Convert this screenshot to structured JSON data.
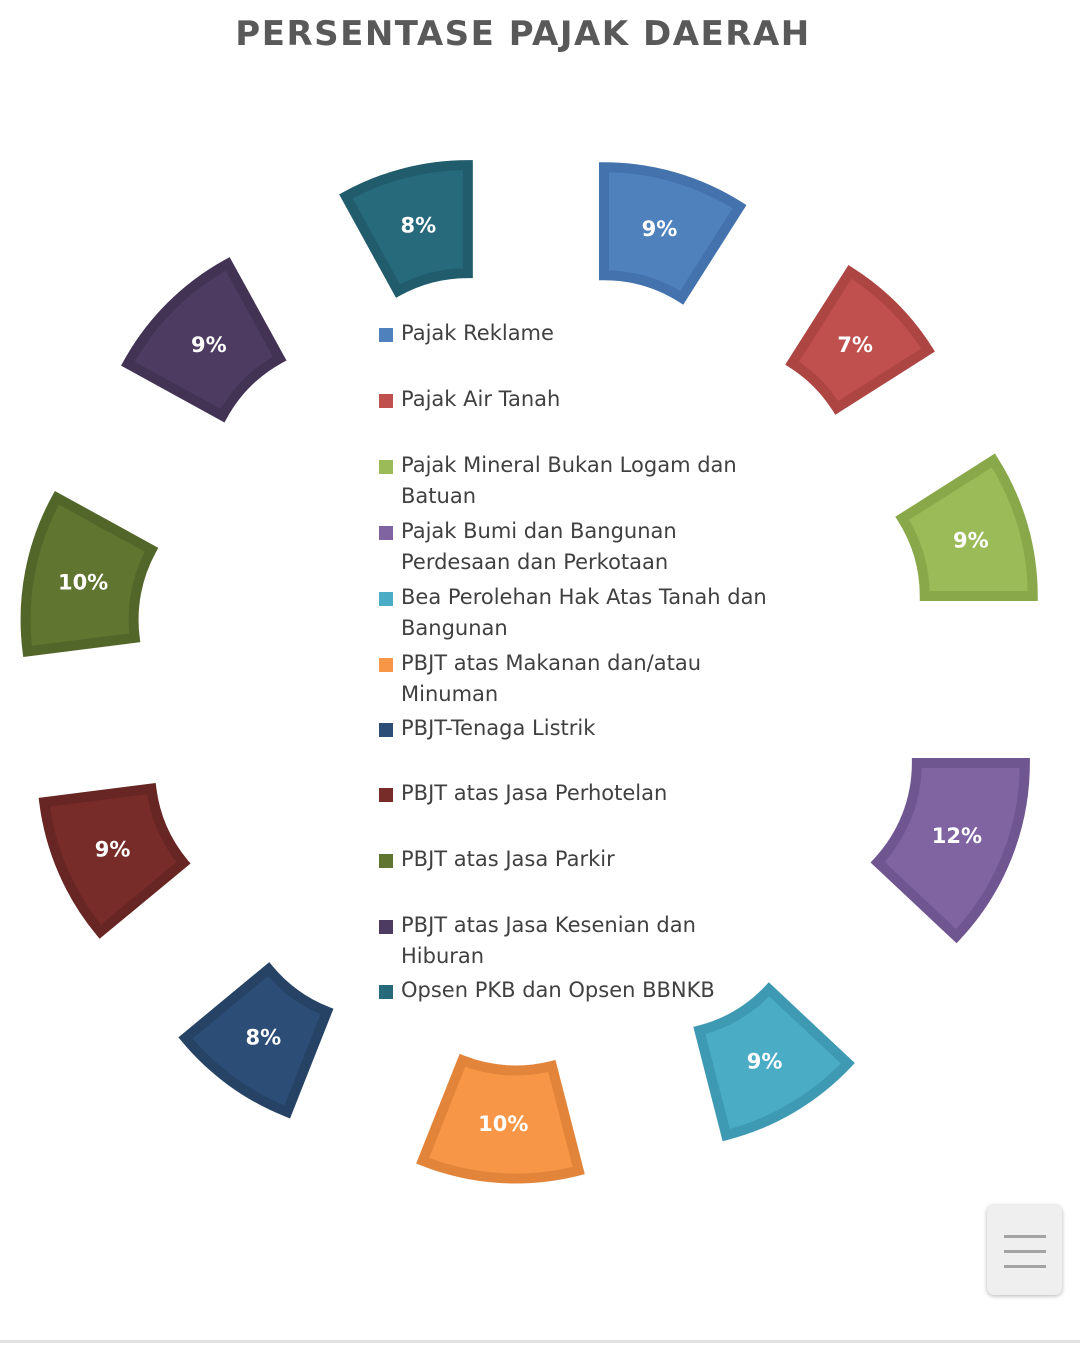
{
  "chart_data": {
    "type": "pie",
    "variant": "exploded-doughnut",
    "title": "PERSENTASE PAJAK DAERAH",
    "legend_position": "center",
    "slices": [
      {
        "name": "Pajak Reklame",
        "value": 9,
        "label": "9%",
        "fill": "#4F81BD",
        "stroke": "#4372AC"
      },
      {
        "name": "Pajak Air Tanah",
        "value": 7,
        "label": "7%",
        "fill": "#C0504D",
        "stroke": "#AD4542"
      },
      {
        "name": "Pajak Mineral Bukan Logam dan Batuan",
        "value": 9,
        "label": "9%",
        "fill": "#9BBB59",
        "stroke": "#89A84A"
      },
      {
        "name": "Pajak Bumi dan Bangunan Perdesaan dan Perkotaan",
        "value": 12,
        "label": "12%",
        "fill": "#8064A2",
        "stroke": "#705690"
      },
      {
        "name": "Bea Perolehan Hak Atas Tanah dan Bangunan",
        "value": 9,
        "label": "9%",
        "fill": "#4BACC6",
        "stroke": "#3E9AB3"
      },
      {
        "name": "PBJT atas Makanan dan/atau Minuman",
        "value": 10,
        "label": "10%",
        "fill": "#F79646",
        "stroke": "#E2843A"
      },
      {
        "name": "PBJT-Tenaga Listrik",
        "value": 8,
        "label": "8%",
        "fill": "#2C4D75",
        "stroke": "#264366"
      },
      {
        "name": "PBJT atas Jasa Perhotelan",
        "value": 9,
        "label": "9%",
        "fill": "#772C2A",
        "stroke": "#672523"
      },
      {
        "name": "PBJT atas Jasa Parkir",
        "value": 10,
        "label": "10%",
        "fill": "#5F7530",
        "stroke": "#52662A"
      },
      {
        "name": "PBJT atas Jasa Kesenian dan Hiburan",
        "value": 9,
        "label": "9%",
        "fill": "#4D3B62",
        "stroke": "#423354"
      },
      {
        "name": "Opsen PKB dan Opsen BBNKB",
        "value": 8,
        "label": "8%",
        "fill": "#276A7C",
        "stroke": "#215C6C"
      }
    ]
  },
  "legend_lines": [
    [
      "Pajak Reklame"
    ],
    [
      "Pajak Air Tanah"
    ],
    [
      "Pajak Mineral Bukan Logam dan",
      "Batuan"
    ],
    [
      "Pajak Bumi dan Bangunan",
      "Perdesaan dan Perkotaan"
    ],
    [
      "Bea Perolehan Hak Atas Tanah dan",
      "Bangunan"
    ],
    [
      "PBJT atas Makanan dan/atau",
      "Minuman"
    ],
    [
      "PBJT-Tenaga Listrik"
    ],
    [
      "PBJT atas Jasa Perhotelan"
    ],
    [
      "PBJT atas Jasa Parkir"
    ],
    [
      "PBJT atas Jasa Kesenian dan",
      "Hiburan"
    ],
    [
      "Opsen PKB dan Opsen BBNKB"
    ]
  ],
  "menu": {
    "icon": "hamburger-menu-icon"
  }
}
